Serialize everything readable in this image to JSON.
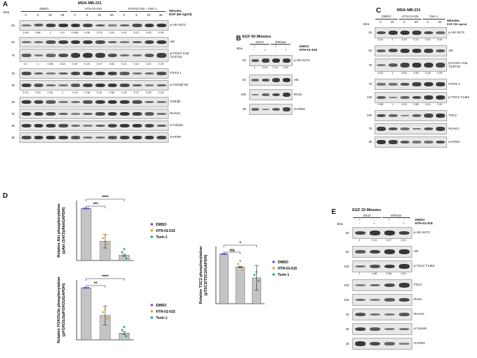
{
  "panelA": {
    "letter": "A",
    "title": "MDA-MB-231",
    "group_labels": [
      "DMSO",
      "HTH-01-015",
      "HTH-01-015 + Torin 1"
    ],
    "lane_labels": [
      "0",
      "5",
      "20",
      "60",
      "0",
      "5",
      "20",
      "60",
      "0",
      "5",
      "20",
      "60"
    ],
    "minutes_label": "Minutes,",
    "egf_label": "EGF (50 ng/ml)",
    "kda_label": "kDa",
    "blots": [
      {
        "name": "p-Akt S473",
        "kda": "63",
        "values": [
          "0.06",
          "0.86",
          "1",
          "0.4",
          "0.008",
          "0.05",
          "0.29",
          "0.51",
          "0.01",
          "0.02",
          "0.03",
          "0.09"
        ]
      },
      {
        "name": "Akt",
        "kda": "63",
        "values": []
      },
      {
        "name": "p-FOXO 1/3a\nT24/T32",
        "kda": "75",
        "values": [
          "0.1",
          "1",
          "0.89",
          "0.52",
          "0.32",
          "0.24",
          "0.47",
          "0.54",
          "0.21",
          "0.22",
          "0.21",
          "0.20"
        ]
      },
      {
        "name": "FOXO 1",
        "kda": "75",
        "values": []
      },
      {
        "name": "p-GSK3β S9",
        "kda": "48",
        "values": [
          "0.24",
          "0.51",
          "0.51",
          "1",
          "0.19",
          "0.38",
          "0.31",
          "0.58",
          "0.15",
          "0.21",
          "0.25",
          "0.34"
        ]
      },
      {
        "name": "GSK3β",
        "kda": "48",
        "values": []
      },
      {
        "name": "NUAK1",
        "kda": "75",
        "values": []
      },
      {
        "name": "α-Tubulin",
        "kda": "48",
        "values": []
      },
      {
        "name": "GAPDH",
        "kda": "35",
        "values": []
      }
    ]
  },
  "panelB": {
    "letter": "B",
    "title": "EGF 60 Minutes",
    "groups": [
      "shCtrl",
      "shRictor"
    ],
    "treat_labels": [
      "DMSO",
      "HTH-01-015"
    ],
    "signs_dmso": [
      "+",
      "-",
      "+",
      "-"
    ],
    "signs_hth": [
      "-",
      "+",
      "-",
      "+"
    ],
    "kda_label": "kDa",
    "blots": [
      {
        "name": "p-Akt S473",
        "kda": "63",
        "values": [
          "1",
          "0.61",
          "0.14",
          "0.02"
        ]
      },
      {
        "name": "Akt",
        "kda": "63",
        "values": []
      },
      {
        "name": "Rictor",
        "kda": "245",
        "values": []
      },
      {
        "name": "GAPDH",
        "kda": "35",
        "values": []
      }
    ]
  },
  "panelC": {
    "letter": "C",
    "title": "MDA-MB-231",
    "group_labels": [
      "DMSO",
      "HTH-01-015",
      "Torin 1"
    ],
    "lane_labels": [
      "0",
      "20",
      "0",
      "20",
      "0",
      "20"
    ],
    "minutes_label": "Minutes,",
    "egf_label": "EGF (50 ng/ml)",
    "kda_label": "kDa",
    "blots": [
      {
        "name": "p-Akt S473",
        "kda": "63",
        "values": [
          "0.02",
          "1",
          "0.03",
          "0.12",
          "0.01",
          "0.04"
        ]
      },
      {
        "name": "Akt",
        "kda": "63",
        "values": []
      },
      {
        "name": "p-FOXO 1/3a\nT24/T32",
        "kda": "75",
        "values": [
          "0.31",
          "1",
          "0.51",
          "0.51",
          "0.18",
          "0.29"
        ]
      },
      {
        "name": "FOXO 1",
        "kda": "75",
        "values": []
      },
      {
        "name": "p-TSC2 T1462",
        "kda": "245",
        "values": [
          "0.55",
          "1",
          "0.13",
          "0.95",
          "0.21",
          "0.31"
        ]
      },
      {
        "name": "TSC2",
        "kda": "245",
        "values": []
      },
      {
        "name": "NUAK1",
        "kda": "75",
        "values": []
      },
      {
        "name": "GAPDH",
        "kda": "35",
        "values": []
      }
    ]
  },
  "panelD": {
    "letter": "D",
    "legend": [
      "DMSO",
      "HTH-01-015",
      "Torin 1"
    ],
    "colors": {
      "DMSO": "#7b3fe4",
      "HTH-01-015": "#f39a1e",
      "Torin 1": "#1f9e9a",
      "bar": "#c4c4c4"
    },
    "chart_data": [
      {
        "type": "bar",
        "ylabel": "Relative Akt phosphorylation\n(pAkt (S473)/Akt/GAPDH)",
        "categories": [
          "DMSO",
          "HTH-01-015",
          "Torin 1"
        ],
        "values": [
          1.0,
          0.37,
          0.1
        ],
        "errors": [
          0.0,
          0.13,
          0.02
        ],
        "sig": [
          "***",
          "****"
        ]
      },
      {
        "type": "bar",
        "ylabel": "Relative FOXO1/3a phosphorylation\n(pFOXO1/3a/FOXO1/GAPDH)",
        "categories": [
          "DMSO",
          "HTH-01-015",
          "Torin 1"
        ],
        "values": [
          1.0,
          0.47,
          0.13
        ],
        "errors": [
          0.0,
          0.18,
          0.03
        ],
        "sig": [
          "**",
          "****"
        ]
      },
      {
        "type": "bar",
        "ylabel": "Relative TSC2 phosphorylation\n(pTSC2/TSC2/GAPDH)",
        "categories": [
          "DMSO",
          "HTH-01-015",
          "Torin 1"
        ],
        "values": [
          1.0,
          0.74,
          0.52
        ],
        "errors": [
          0.0,
          0.01,
          0.25
        ],
        "sig": [
          "ns",
          "*"
        ]
      }
    ]
  },
  "panelE": {
    "letter": "E",
    "title": "EGF 20 Minutes",
    "groups": [
      "shCtrl",
      "shRictor"
    ],
    "treat_labels": [
      "DMSO",
      "HTH-01-015"
    ],
    "signs_dmso": [
      "+",
      "-",
      "+",
      "-"
    ],
    "signs_hth": [
      "-",
      "+",
      "-",
      "+"
    ],
    "kda_label": "kDa",
    "blots": [
      {
        "name": "p-Akt S473",
        "kda": "63",
        "values": [
          "1",
          "0.11",
          "0.27",
          "0.01"
        ]
      },
      {
        "name": "Akt",
        "kda": "63",
        "values": []
      },
      {
        "name": "p-TSC2 T1462",
        "kda": "245",
        "values": [
          "1",
          "1.86",
          "0.58",
          "0.51"
        ]
      },
      {
        "name": "TSC2",
        "kda": "245",
        "values": []
      },
      {
        "name": "Rictor",
        "kda": "245",
        "values": []
      },
      {
        "name": "NUAK1",
        "kda": "75",
        "values": []
      },
      {
        "name": "α-Tubulin",
        "kda": "48",
        "values": []
      },
      {
        "name": "GAPDH",
        "kda": "35",
        "values": []
      }
    ]
  }
}
